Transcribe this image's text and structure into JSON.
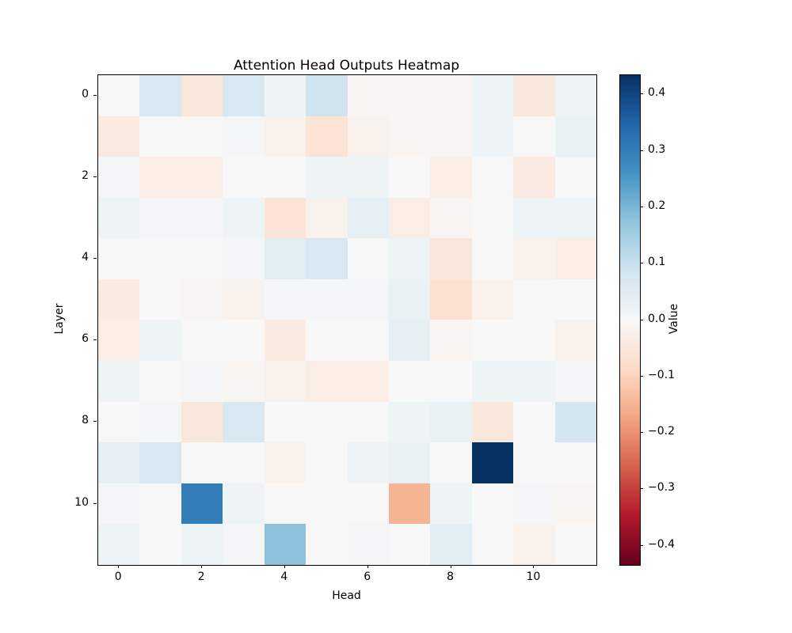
{
  "figure": {
    "background": "#ffffff"
  },
  "chart_data": {
    "type": "heatmap",
    "title": "Attention Head Outputs Heatmap",
    "xlabel": "Head",
    "ylabel": "Layer",
    "colorbar_label": "Value",
    "n_rows": 12,
    "n_cols": 12,
    "row_meaning": "Layer 0-11 (top to bottom)",
    "col_meaning": "Head 0-11 (left to right)",
    "x_ticks": [
      {
        "label": "0",
        "position": 0
      },
      {
        "label": "2",
        "position": 2
      },
      {
        "label": "4",
        "position": 4
      },
      {
        "label": "6",
        "position": 6
      },
      {
        "label": "8",
        "position": 8
      },
      {
        "label": "10",
        "position": 10
      }
    ],
    "y_ticks": [
      {
        "label": "0",
        "position": 0
      },
      {
        "label": "2",
        "position": 2
      },
      {
        "label": "4",
        "position": 4
      },
      {
        "label": "6",
        "position": 6
      },
      {
        "label": "8",
        "position": 8
      },
      {
        "label": "10",
        "position": 10
      }
    ],
    "vmin": -0.434,
    "vmax": 0.434,
    "colormap": {
      "name": "RdBu",
      "stops": [
        [
          0.0,
          [
            103,
            0,
            31
          ]
        ],
        [
          0.1,
          [
            178,
            24,
            43
          ]
        ],
        [
          0.2,
          [
            214,
            96,
            77
          ]
        ],
        [
          0.3,
          [
            244,
            165,
            130
          ]
        ],
        [
          0.4,
          [
            253,
            219,
            199
          ]
        ],
        [
          0.5,
          [
            247,
            247,
            247
          ]
        ],
        [
          0.6,
          [
            209,
            229,
            240
          ]
        ],
        [
          0.7,
          [
            146,
            197,
            222
          ]
        ],
        [
          0.8,
          [
            67,
            147,
            195
          ]
        ],
        [
          0.9,
          [
            33,
            102,
            172
          ]
        ],
        [
          1.0,
          [
            5,
            48,
            97
          ]
        ]
      ]
    },
    "colorbar_ticks": [
      {
        "label": "0.4",
        "value": 0.4
      },
      {
        "label": "0.3",
        "value": 0.3
      },
      {
        "label": "0.2",
        "value": 0.2
      },
      {
        "label": "0.1",
        "value": 0.1
      },
      {
        "label": "0.0",
        "value": 0.0
      },
      {
        "label": "−0.1",
        "value": -0.1
      },
      {
        "label": "−0.2",
        "value": -0.2
      },
      {
        "label": "−0.3",
        "value": -0.3
      },
      {
        "label": "−0.4",
        "value": -0.4
      }
    ],
    "values": [
      [
        0.0,
        0.07,
        -0.05,
        0.07,
        0.02,
        0.09,
        -0.01,
        -0.01,
        -0.01,
        0.02,
        -0.05,
        0.02
      ],
      [
        -0.04,
        0.0,
        0.0,
        0.01,
        -0.02,
        -0.06,
        -0.02,
        -0.01,
        -0.01,
        0.02,
        0.0,
        0.03
      ],
      [
        0.01,
        -0.03,
        -0.03,
        0.0,
        0.0,
        0.02,
        0.02,
        0.0,
        -0.03,
        0.0,
        -0.04,
        0.0
      ],
      [
        0.02,
        0.01,
        0.01,
        0.02,
        -0.06,
        -0.02,
        0.04,
        -0.03,
        -0.01,
        0.0,
        0.02,
        0.02
      ],
      [
        0.0,
        0.0,
        0.0,
        0.01,
        0.05,
        0.07,
        0.0,
        0.02,
        -0.05,
        0.0,
        -0.02,
        -0.03
      ],
      [
        -0.04,
        0.0,
        -0.01,
        -0.02,
        0.01,
        0.01,
        0.01,
        0.03,
        -0.07,
        -0.02,
        0.0,
        0.0
      ],
      [
        -0.03,
        0.02,
        0.0,
        0.0,
        -0.04,
        0.0,
        0.0,
        0.04,
        -0.01,
        0.0,
        0.0,
        -0.02
      ],
      [
        0.02,
        0.0,
        0.01,
        -0.01,
        -0.02,
        -0.03,
        -0.03,
        0.0,
        0.0,
        0.02,
        0.02,
        0.01
      ],
      [
        0.0,
        0.01,
        -0.05,
        0.07,
        0.0,
        0.0,
        0.0,
        0.02,
        0.03,
        -0.05,
        0.0,
        0.08
      ],
      [
        0.04,
        0.07,
        0.0,
        0.0,
        -0.02,
        0.0,
        0.02,
        0.03,
        0.0,
        0.43,
        0.0,
        0.0
      ],
      [
        0.01,
        0.0,
        0.3,
        0.02,
        0.0,
        0.0,
        0.0,
        -0.15,
        0.02,
        0.0,
        0.01,
        -0.01
      ],
      [
        0.02,
        0.0,
        0.02,
        0.01,
        0.18,
        0.0,
        0.01,
        0.0,
        0.05,
        0.0,
        -0.02,
        0.0
      ]
    ],
    "notable_values": {
      "max_cell": {
        "head": 9,
        "layer": 9,
        "value": 0.43
      },
      "strong_blue": {
        "head": 2,
        "layer": 10,
        "value": 0.3
      },
      "light_blue": {
        "head": 4,
        "layer": 11,
        "value": 0.18
      },
      "strong_negative": {
        "head": 7,
        "layer": 10,
        "value": -0.15
      }
    },
    "legend": "colorbar-right",
    "grid": false
  }
}
